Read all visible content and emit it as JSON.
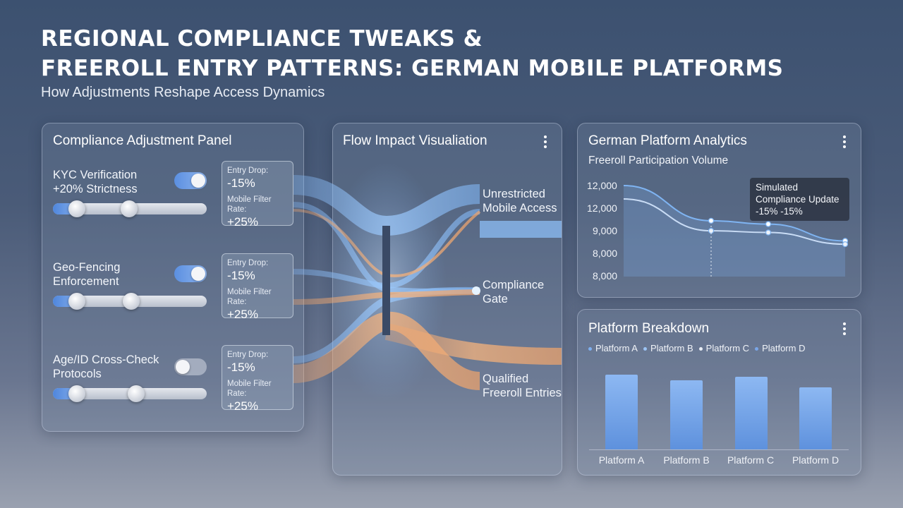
{
  "header": {
    "title_line1": "REGIONAL COMPLIANCE TWEAKS &",
    "title_line2": "FREEROLL ENTRY PATTERNS: GERMAN MOBILE PLATFORMS",
    "subtitle": "How Adjustments Reshape Access Dynamics"
  },
  "compliance": {
    "title": "Compliance Adjustment Panel",
    "controls": [
      {
        "label_line1": "KYC Verification",
        "label_line2": "+20% Strictness",
        "toggle_on": true,
        "entry_drop_label": "Entry Drop:",
        "entry_drop": "-15%",
        "filter_label": "Mobile Filter Rate:",
        "filter_rate": "+25%"
      },
      {
        "label_line1": "Geo-Fencing",
        "label_line2": "Enforcement",
        "toggle_on": true,
        "entry_drop_label": "Entry Drop:",
        "entry_drop": "-15%",
        "filter_label": "Mobile Filter Rate:",
        "filter_rate": "+25%"
      },
      {
        "label_line1": "Age/ID Cross-Check",
        "label_line2": "Protocols",
        "toggle_on": false,
        "entry_drop_label": "Entry Drop:",
        "entry_drop": "-15%",
        "filter_label": "Mobile Filter Rate:",
        "filter_rate": "+25%"
      }
    ]
  },
  "flow": {
    "title": "Flow Impact Visualiation",
    "nodes": [
      {
        "line1": "Unrestricted",
        "line2": "Mobile Access"
      },
      {
        "line1": "Compliance",
        "line2": "Gate"
      },
      {
        "line1": "Qualified",
        "line2": "Freeroll Entries"
      }
    ],
    "colors": {
      "blue": "#7fb4f2",
      "orange": "#f2a46a"
    }
  },
  "analytics": {
    "title": "German Platform Analytics",
    "subtitle": "Freeroll Participation Volume",
    "y_labels": [
      "12,000",
      "12,000",
      "9,000",
      "8,000",
      "8,000"
    ],
    "tooltip_line1": "Simulated",
    "tooltip_line2": "Compliance Update",
    "tooltip_line3": "-15% -15%"
  },
  "breakdown": {
    "title": "Platform Breakdown",
    "legend": [
      "Platform A",
      "Platform B",
      "Platform C",
      "Platform D"
    ],
    "legend_colors": [
      "#7fb0f0",
      "#9cc4f5",
      "#e8edf5",
      "#7aa6e8"
    ]
  },
  "chart_data": [
    {
      "type": "line",
      "title": "Freeroll Participation Volume",
      "y_tick_labels": [
        "12,000",
        "12,000",
        "9,000",
        "8,000",
        "8,000"
      ],
      "x": [
        1,
        2,
        3,
        4
      ],
      "series": [
        {
          "values": [
            12000,
            9900,
            9700,
            8700
          ]
        },
        {
          "values": [
            11200,
            9300,
            9200,
            8500
          ]
        }
      ],
      "annotation": "Simulated Compliance Update -15% -15%"
    },
    {
      "type": "bar",
      "title": "Platform Breakdown",
      "categories": [
        "Platform A",
        "Platform B",
        "Platform C",
        "Platform D"
      ],
      "values": [
        100,
        92,
        97,
        83
      ]
    }
  ]
}
